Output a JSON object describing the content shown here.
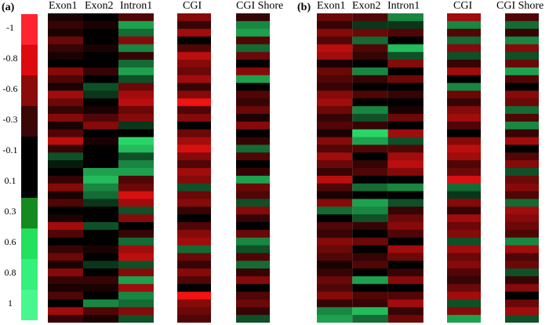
{
  "panels": [
    {
      "label": "(a)",
      "columns": [
        "Exon1",
        "Exon2",
        "Intron1",
        "CGI",
        "CGI Shore"
      ]
    },
    {
      "label": "(b)",
      "columns": [
        "Exon1",
        "Exon2",
        "Intron1",
        "CGI",
        "CGI Shore"
      ]
    }
  ],
  "legend": {
    "labels": [
      "-1",
      "-0.8",
      "-0.6",
      "-0.3",
      "-0.1",
      "0.1",
      "0.3",
      "0.6",
      "0.8",
      "1"
    ],
    "colors": [
      "#ff2430",
      "#dd0b0f",
      "#8b0b0b",
      "#3a0606",
      "#000000",
      "#000000",
      "#158a21",
      "#23e05f",
      "#35f07a",
      "#48f88f"
    ]
  },
  "colors": {
    "negative_high": "#ff2020",
    "neutral": "#000000",
    "positive_high": "#40ff80"
  },
  "chart_data": {
    "type": "heatmap",
    "scale_range": [
      -1,
      1
    ],
    "panels": [
      {
        "label": "(a)",
        "columns": [
          {
            "name": "Exon1",
            "values": [
              -0.1,
              -0.2,
              -0.1,
              -0.4,
              -0.2,
              -0.1,
              0.0,
              -0.5,
              -0.3,
              -0.1,
              -0.6,
              -0.4,
              -0.2,
              -0.5,
              -0.1,
              -0.3,
              -0.7,
              -0.2,
              0.3,
              0.1,
              0.0,
              -0.2,
              -0.5,
              -0.1,
              -0.3,
              0.0,
              -0.1,
              -0.6,
              -0.3,
              0.0,
              -0.2,
              -0.4,
              -0.1,
              -0.5,
              -0.2,
              -0.1,
              -0.3,
              0.0,
              -0.6,
              -0.2
            ]
          },
          {
            "name": "Exon2",
            "values": [
              0.0,
              -0.1,
              0.0,
              0.0,
              -0.1,
              0.0,
              0.0,
              -0.2,
              0.0,
              0.3,
              0.2,
              0.0,
              -0.1,
              -0.3,
              -0.5,
              0.0,
              -0.1,
              0.0,
              0.0,
              0.0,
              0.6,
              0.7,
              0.5,
              0.4,
              0.2,
              0.0,
              0.0,
              0.3,
              0.0,
              0.0,
              -0.1,
              0.0,
              0.2,
              0.0,
              -0.2,
              -0.1,
              0.0,
              0.5,
              -0.3,
              -0.1
            ]
          },
          {
            "name": "Intron1",
            "values": [
              -0.3,
              0.6,
              0.4,
              -0.5,
              0.5,
              -0.2,
              0.4,
              0.6,
              0.3,
              -0.4,
              -0.6,
              -0.7,
              -0.4,
              -0.5,
              0.2,
              0.0,
              0.8,
              0.7,
              0.3,
              0.5,
              0.6,
              -0.3,
              -0.4,
              -0.8,
              -0.6,
              0.3,
              -0.5,
              0.0,
              -0.2,
              0.4,
              -0.6,
              -0.7,
              0.3,
              -0.5,
              0.6,
              -0.6,
              0.5,
              0.4,
              -0.5,
              0.3
            ]
          },
          {
            "name": "CGI",
            "values": [
              -0.5,
              -0.2,
              -0.6,
              0.0,
              -0.3,
              -0.7,
              -0.5,
              -0.4,
              -0.6,
              -0.2,
              -0.5,
              -0.9,
              -0.3,
              -0.5,
              0.0,
              -0.4,
              -0.6,
              -0.8,
              -0.5,
              -0.3,
              -0.6,
              -0.5,
              0.3,
              -0.4,
              -0.5,
              -0.2,
              0.0,
              -0.3,
              -0.5,
              -0.6,
              0.4,
              -0.4,
              -0.2,
              -0.5,
              -0.3,
              0.0,
              -0.9,
              -0.5,
              -0.4,
              -0.3
            ]
          },
          {
            "name": "CGI Shore",
            "values": [
              -0.2,
              0.5,
              0.6,
              -0.3,
              0.4,
              -0.4,
              0.0,
              -0.5,
              0.6,
              0.0,
              -0.3,
              -0.2,
              -0.4,
              -0.1,
              -0.5,
              0.0,
              -0.2,
              0.4,
              -0.3,
              0.0,
              -0.2,
              0.6,
              -0.4,
              -0.3,
              0.3,
              -0.5,
              -0.2,
              0.0,
              -0.4,
              0.5,
              0.3,
              -0.3,
              0.4,
              -0.2,
              -0.5,
              0.0,
              -0.3,
              -0.4,
              -0.2,
              0.3
            ]
          }
        ]
      },
      {
        "label": "(b)",
        "columns": [
          {
            "name": "Exon1",
            "values": [
              -0.4,
              -0.2,
              -0.5,
              -0.3,
              -0.7,
              -0.6,
              -0.1,
              -0.4,
              -0.3,
              -0.2,
              -0.5,
              -0.6,
              -0.4,
              -0.2,
              -0.3,
              -0.1,
              -0.5,
              -0.3,
              -0.6,
              -0.4,
              -0.2,
              -0.7,
              -0.3,
              -0.1,
              -0.5,
              0.4,
              0.0,
              -0.3,
              -0.2,
              -0.5,
              -0.4,
              -0.3,
              -0.1,
              -0.2,
              -0.4,
              -0.3,
              -0.5,
              -0.2,
              0.5,
              0.6
            ]
          },
          {
            "name": "Exon2",
            "values": [
              -0.3,
              0.2,
              -0.4,
              0.4,
              -0.3,
              -0.2,
              0.0,
              0.5,
              -0.2,
              0.0,
              -0.3,
              0.0,
              0.5,
              0.3,
              -0.2,
              0.8,
              0.6,
              -0.3,
              0.0,
              -0.2,
              -0.3,
              0.0,
              0.4,
              0.0,
              0.6,
              0.5,
              0.3,
              -0.2,
              0.0,
              -0.4,
              0.0,
              -0.2,
              -0.3,
              0.0,
              0.6,
              0.0,
              -0.3,
              -0.2,
              0.7,
              0.4
            ]
          },
          {
            "name": "Intron1",
            "values": [
              0.5,
              0.2,
              -0.3,
              0.0,
              0.7,
              0.3,
              -0.5,
              0.0,
              -0.4,
              0.0,
              -0.2,
              0.0,
              -0.1,
              -0.4,
              0.0,
              -0.6,
              0.3,
              -0.3,
              -0.6,
              -0.7,
              -0.5,
              0.0,
              0.5,
              0.0,
              0.3,
              -0.2,
              -0.4,
              -0.5,
              -0.3,
              0.0,
              -0.6,
              -0.4,
              0.0,
              -0.2,
              -0.5,
              0.0,
              -0.3,
              -0.6,
              -0.2,
              -0.4
            ]
          },
          {
            "name": "CGI",
            "values": [
              -0.6,
              0.5,
              -0.3,
              0.4,
              -0.5,
              0.3,
              -0.2,
              -0.6,
              0.0,
              0.5,
              -0.4,
              -0.2,
              -0.5,
              -0.6,
              -0.3,
              0.0,
              -0.5,
              -0.7,
              -0.6,
              -0.3,
              -0.4,
              -0.8,
              0.4,
              0.2,
              -0.5,
              -0.2,
              -0.6,
              -0.4,
              -0.5,
              0.3,
              -0.6,
              -0.4,
              -0.5,
              -0.3,
              -0.2,
              -0.4,
              -0.6,
              0.3,
              -0.5,
              0.6
            ]
          },
          {
            "name": "CGI Shore",
            "values": [
              -0.3,
              0.4,
              -0.2,
              0.5,
              -0.5,
              0.3,
              -0.4,
              0.6,
              -0.3,
              0.0,
              -0.5,
              -0.4,
              0.4,
              -0.3,
              0.5,
              -0.2,
              -0.6,
              0.0,
              -0.3,
              -0.5,
              0.3,
              -0.4,
              -0.5,
              -0.3,
              0.4,
              -0.6,
              -0.5,
              -0.4,
              -0.3,
              0.5,
              -0.6,
              -0.3,
              -0.4,
              0.3,
              -0.2,
              -0.5,
              0.0,
              -0.4,
              -0.6,
              0.3
            ]
          }
        ]
      }
    ]
  }
}
